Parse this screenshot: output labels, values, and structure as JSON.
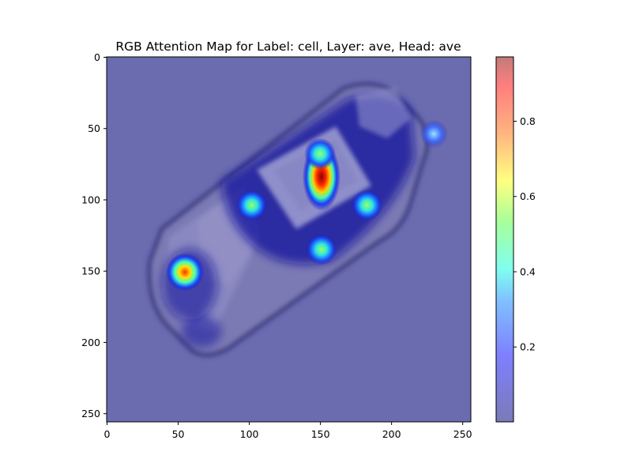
{
  "chart_data": {
    "type": "heatmap",
    "title": "RGB Attention Map for Label: cell, Layer: ave, Head: ave",
    "xlabel": "",
    "ylabel": "",
    "xlim": [
      0,
      256
    ],
    "ylim": [
      256,
      0
    ],
    "x_ticks": [
      0,
      50,
      100,
      150,
      200,
      250
    ],
    "y_ticks": [
      0,
      50,
      100,
      150,
      200,
      250
    ],
    "grid": false,
    "colormap": "jet",
    "background_object": "flip phone",
    "hotspots": [
      {
        "x": 151,
        "y": 84,
        "value": 0.97
      },
      {
        "x": 150,
        "y": 68,
        "value": 0.45
      },
      {
        "x": 55,
        "y": 151,
        "value": 0.72
      },
      {
        "x": 151,
        "y": 135,
        "value": 0.38
      },
      {
        "x": 183,
        "y": 104,
        "value": 0.36
      },
      {
        "x": 102,
        "y": 104,
        "value": 0.3
      },
      {
        "x": 230,
        "y": 54,
        "value": 0.22
      }
    ],
    "colorbar": {
      "range": [
        0.0,
        0.97
      ],
      "ticks": [
        0.2,
        0.4,
        0.6,
        0.8
      ],
      "tick_labels": [
        "0.2",
        "0.4",
        "0.6",
        "0.8"
      ]
    }
  }
}
